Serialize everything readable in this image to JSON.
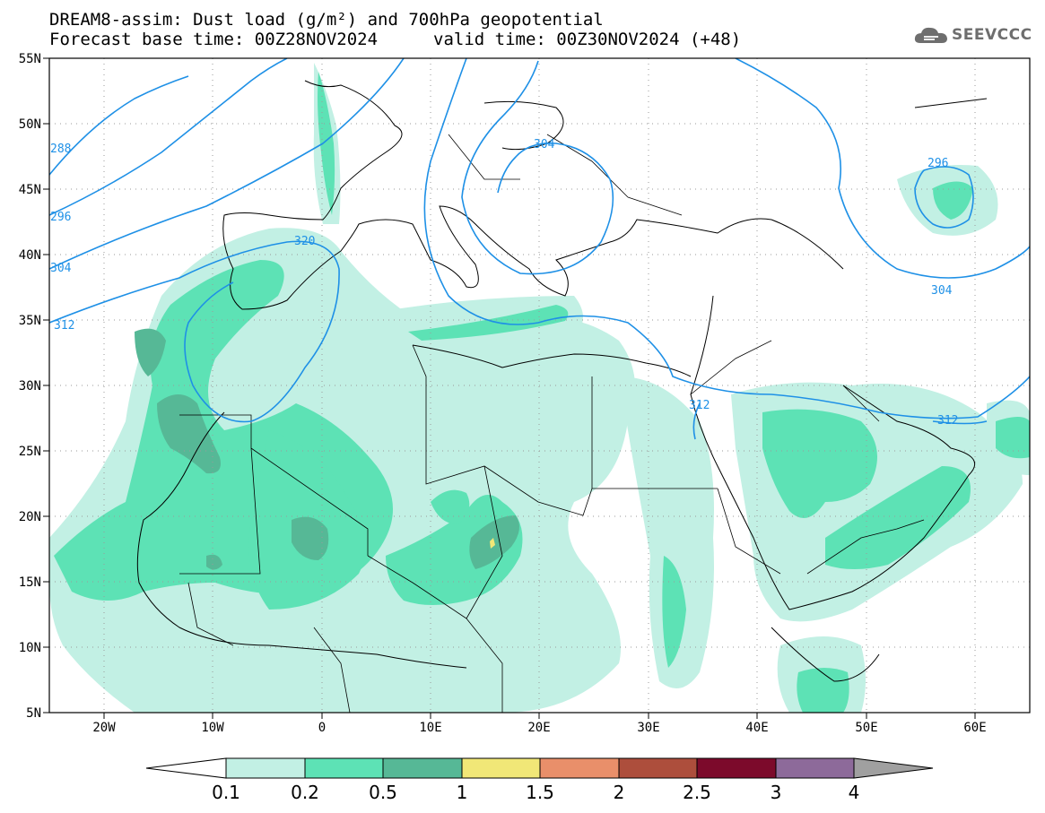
{
  "title": {
    "line1": "DREAM8-assim: Dust load (g/m²) and 700hPa geopotential",
    "base_time": "Forecast base time: 00Z28NOV2024",
    "valid_time": "valid time: 00Z30NOV2024 (+48)"
  },
  "logo": {
    "text": "SEEVCCC",
    "icon": "cloud-icon"
  },
  "axes": {
    "lat_labels": [
      "55N",
      "50N",
      "45N",
      "40N",
      "35N",
      "30N",
      "25N",
      "20N",
      "15N",
      "10N",
      "5N"
    ],
    "lon_labels": [
      "20W",
      "10W",
      "0",
      "10E",
      "20E",
      "30E",
      "40E",
      "50E",
      "60E"
    ]
  },
  "contours": {
    "labels": [
      "288",
      "296",
      "304",
      "312",
      "320",
      "304",
      "296",
      "304",
      "312",
      "312"
    ]
  },
  "colorbar": {
    "ticks": [
      "0.1",
      "0.2",
      "0.5",
      "1",
      "1.5",
      "2",
      "2.5",
      "3",
      "4"
    ],
    "colors": [
      "#ffffff",
      "#c2f0e4",
      "#5de2b5",
      "#56b896",
      "#f1e777",
      "#e98f6a",
      "#ad4e3c",
      "#7c0a2b",
      "#8d6a9a",
      "#a0a0a0"
    ]
  }
}
